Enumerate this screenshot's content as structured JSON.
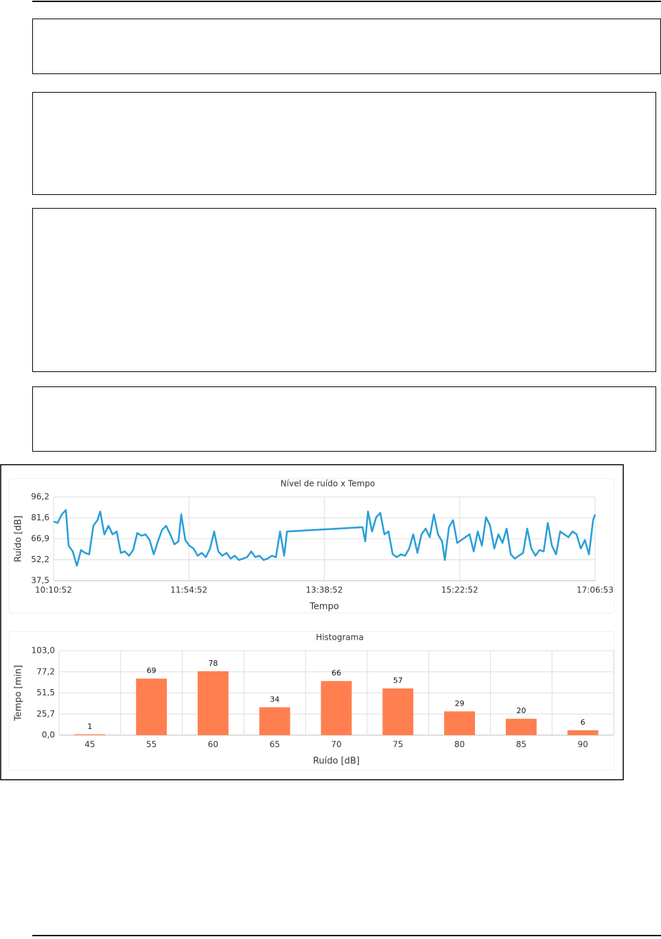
{
  "chart_data": [
    {
      "type": "line",
      "title": "Nível de ruído x Tempo",
      "x_label": "Tempo",
      "y_label": "Ruído [dB]",
      "color": "#2b9fd9",
      "grid": true,
      "xlim": [
        36652,
        61613
      ],
      "xticks": [
        {
          "value": 36652,
          "label": "10:10:52"
        },
        {
          "value": 42892,
          "label": "11:54:52"
        },
        {
          "value": 49132,
          "label": "13:38:52"
        },
        {
          "value": 55372,
          "label": "15:22:52"
        },
        {
          "value": 61613,
          "label": "17:06:53"
        }
      ],
      "ylim": [
        37.5,
        96.2
      ],
      "yticks": [
        {
          "value": 37.5,
          "label": "37,5"
        },
        {
          "value": 52.2,
          "label": "52,2"
        },
        {
          "value": 66.9,
          "label": "66,9"
        },
        {
          "value": 81.6,
          "label": "81,6"
        },
        {
          "value": 96.2,
          "label": "96,2"
        }
      ],
      "x": [
        36652,
        36842,
        37032,
        37222,
        37348,
        37538,
        37728,
        37918,
        38107,
        38297,
        38487,
        38677,
        38804,
        38993,
        39183,
        39373,
        39563,
        39753,
        39943,
        40132,
        40322,
        40512,
        40702,
        40892,
        41082,
        41271,
        41461,
        41651,
        41841,
        42031,
        42221,
        42410,
        42537,
        42727,
        42917,
        43107,
        43296,
        43486,
        43676,
        43866,
        44056,
        44246,
        44435,
        44625,
        44815,
        45005,
        45195,
        45385,
        45574,
        45764,
        45954,
        46144,
        46334,
        46524,
        46714,
        46903,
        47093,
        47283,
        47410,
        50890,
        51017,
        51143,
        51333,
        51523,
        51713,
        51902,
        52092,
        52282,
        52472,
        52662,
        52852,
        53042,
        53231,
        53421,
        53611,
        53801,
        53991,
        54181,
        54370,
        54560,
        54687,
        54877,
        55066,
        55256,
        55446,
        55636,
        55826,
        56016,
        56206,
        56395,
        56585,
        56775,
        56965,
        57155,
        57345,
        57534,
        57724,
        57914,
        58104,
        58294,
        58484,
        58673,
        58863,
        59053,
        59243,
        59433,
        59623,
        59812,
        60002,
        60192,
        60382,
        60572,
        60762,
        60952,
        61141,
        61331,
        61521,
        61613
      ],
      "values": [
        79,
        78,
        84,
        87,
        62,
        58,
        48,
        59,
        57,
        56,
        76,
        80,
        86,
        70,
        76,
        70,
        72,
        57,
        58,
        55,
        59,
        71,
        69,
        70,
        66,
        56,
        65,
        73,
        76,
        70,
        63,
        65,
        84,
        66,
        62,
        60,
        55,
        57,
        54,
        60,
        72,
        58,
        55,
        57,
        53,
        55,
        52,
        53,
        54,
        58,
        54,
        55,
        52,
        53,
        55,
        54,
        72,
        55,
        72,
        75,
        65,
        86,
        72,
        82,
        85,
        70,
        72,
        56,
        54,
        56,
        55,
        60,
        70,
        57,
        70,
        74,
        68,
        84,
        70,
        65,
        52,
        75,
        80,
        64,
        66,
        68,
        70,
        58,
        72,
        62,
        82,
        76,
        60,
        70,
        64,
        74,
        56,
        53,
        55,
        57,
        74,
        60,
        55,
        59,
        58,
        78,
        62,
        56,
        72,
        70,
        68,
        72,
        70,
        60,
        66,
        56,
        80,
        84
      ]
    },
    {
      "type": "bar",
      "title": "Histograma",
      "x_label": "Ruído [dB]",
      "y_label": "Tempo [min]",
      "color": "#ff7f50",
      "grid": true,
      "categories": [
        "45",
        "55",
        "60",
        "65",
        "70",
        "75",
        "80",
        "85",
        "90"
      ],
      "values": [
        1,
        69,
        78,
        34,
        66,
        57,
        29,
        20,
        6
      ],
      "ylim": [
        0,
        103
      ],
      "yticks": [
        {
          "value": 0,
          "label": "0,0"
        },
        {
          "value": 25.7,
          "label": "25,7"
        },
        {
          "value": 51.5,
          "label": "51,5"
        },
        {
          "value": 77.2,
          "label": "77,2"
        },
        {
          "value": 103,
          "label": "103,0"
        }
      ]
    }
  ]
}
